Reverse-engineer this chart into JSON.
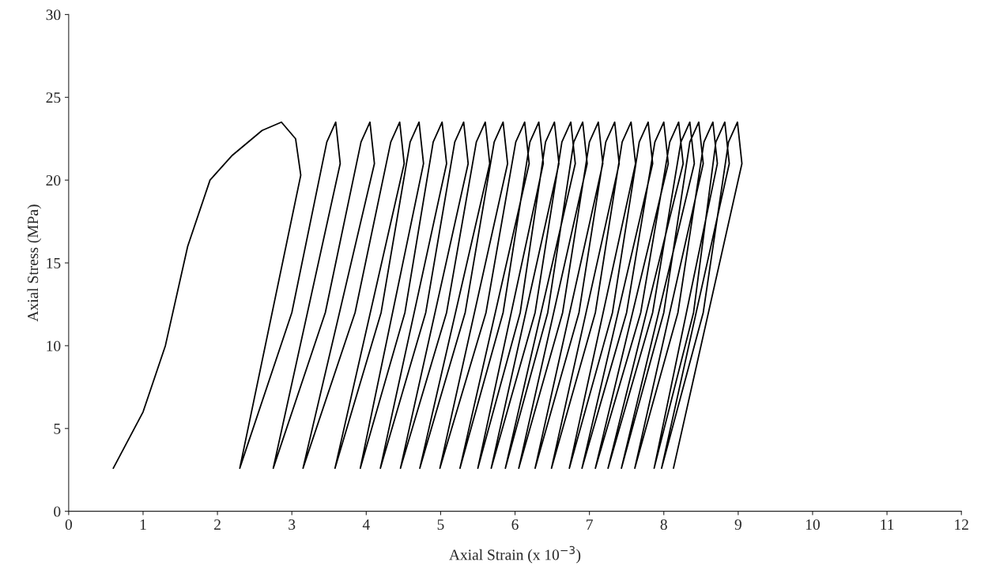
{
  "chart_data": {
    "type": "line",
    "xlabel": "Axial Strain (x 10$^{−3}$)",
    "ylabel": "Axial Stress (MPa)",
    "xlim": [
      0,
      12
    ],
    "ylim": [
      0,
      30
    ],
    "xticks": [
      0,
      1,
      2,
      3,
      4,
      5,
      6,
      7,
      8,
      9,
      10,
      11,
      12
    ],
    "yticks": [
      0,
      5,
      10,
      15,
      20,
      25,
      30
    ],
    "grid": false,
    "marker": "none",
    "line_style": "solid",
    "series": [
      {
        "color": "#000000",
        "x": [
          0.6,
          1.0,
          1.3,
          1.6,
          1.9,
          2.2,
          2.6,
          2.86,
          3.05,
          3.12,
          2.3,
          3.0,
          3.47,
          3.59,
          3.65,
          2.75,
          3.45,
          3.93,
          4.05,
          4.11,
          3.15,
          3.85,
          4.33,
          4.45,
          4.51,
          3.58,
          4.2,
          4.59,
          4.71,
          4.77,
          3.92,
          4.52,
          4.9,
          5.02,
          5.08,
          4.19,
          4.8,
          5.19,
          5.31,
          5.37,
          4.46,
          5.08,
          5.48,
          5.6,
          5.66,
          4.72,
          5.33,
          5.72,
          5.84,
          5.9,
          4.99,
          5.61,
          6.01,
          6.13,
          6.19,
          5.26,
          5.84,
          6.2,
          6.32,
          6.38,
          5.5,
          6.07,
          6.41,
          6.53,
          6.59,
          5.68,
          6.27,
          6.63,
          6.75,
          6.81,
          5.87,
          6.44,
          6.79,
          6.91,
          6.97,
          6.05,
          6.64,
          7.0,
          7.12,
          7.18,
          6.27,
          6.86,
          7.22,
          7.34,
          7.4,
          6.49,
          7.08,
          7.44,
          7.56,
          7.62,
          6.73,
          7.31,
          7.67,
          7.79,
          7.85,
          6.9,
          7.5,
          7.88,
          8.0,
          8.06,
          7.08,
          7.69,
          8.08,
          8.2,
          8.26,
          7.25,
          7.85,
          8.23,
          8.35,
          8.41,
          7.43,
          8.0,
          8.35,
          8.47,
          8.53,
          7.61,
          8.19,
          8.54,
          8.66,
          8.72,
          7.87,
          8.4,
          8.7,
          8.82,
          8.88,
          7.97,
          8.53,
          8.87,
          8.99,
          9.05,
          8.13
        ],
        "values": [
          2.6,
          6,
          10,
          16,
          20,
          21.5,
          23,
          23.5,
          22.5,
          20.3,
          2.6,
          12,
          22.3,
          23.5,
          21.0,
          2.6,
          12,
          22.3,
          23.5,
          21.0,
          2.6,
          12,
          22.3,
          23.5,
          21.0,
          2.6,
          12,
          22.3,
          23.5,
          21.0,
          2.6,
          12,
          22.3,
          23.5,
          21.0,
          2.6,
          12,
          22.3,
          23.5,
          21.0,
          2.6,
          12,
          22.3,
          23.5,
          21.0,
          2.6,
          12,
          22.3,
          23.5,
          21.0,
          2.6,
          12,
          22.3,
          23.5,
          21.0,
          2.6,
          12,
          22.3,
          23.5,
          21.0,
          2.6,
          12,
          22.3,
          23.5,
          21.0,
          2.6,
          12,
          22.3,
          23.5,
          21.0,
          2.6,
          12,
          22.3,
          23.5,
          21.0,
          2.6,
          12,
          22.3,
          23.5,
          21.0,
          2.6,
          12,
          22.3,
          23.5,
          21.0,
          2.6,
          12,
          22.3,
          23.5,
          21.0,
          2.6,
          12,
          22.3,
          23.5,
          21.0,
          2.6,
          12,
          22.3,
          23.5,
          21.0,
          2.6,
          12,
          22.3,
          23.5,
          21.0,
          2.6,
          12,
          22.3,
          23.5,
          21.0,
          2.6,
          12,
          22.3,
          23.5,
          21.0,
          2.6,
          12,
          22.3,
          23.5,
          21.0,
          2.6,
          12,
          22.3,
          23.5,
          21.0,
          2.6,
          12,
          22.3,
          23.5,
          21.0,
          2.6
        ]
      }
    ]
  }
}
